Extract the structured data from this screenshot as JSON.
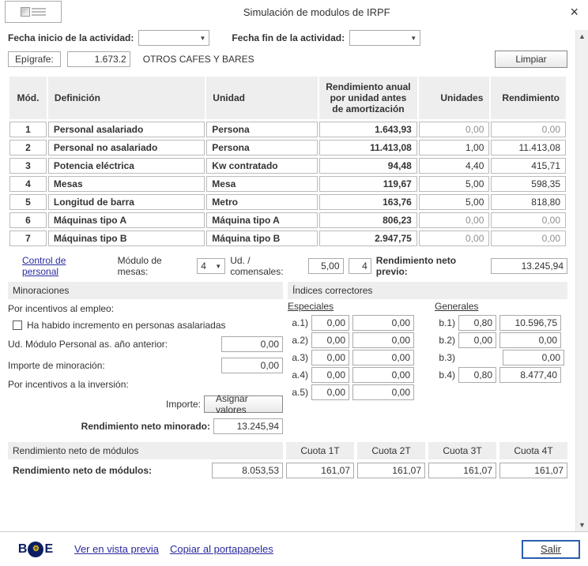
{
  "window": {
    "title": "Simulación de modulos de IRPF"
  },
  "dates": {
    "start_label": "Fecha inicio de la actividad:",
    "end_label": "Fecha fin de la actividad:"
  },
  "epigrafe": {
    "label": "Epígrafe:",
    "code": "1.673.2",
    "desc": "OTROS CAFES Y BARES"
  },
  "buttons": {
    "limpiar": "Limpiar",
    "asignar": "Asignar valores",
    "salir": "Salir"
  },
  "headers": {
    "mod": "Mód.",
    "def": "Definición",
    "uni": "Unidad",
    "rend": "Rendimiento anual por unidad antes de amortización",
    "unidades": "Unidades",
    "rendimiento": "Rendimiento"
  },
  "rows": [
    {
      "n": "1",
      "def": "Personal asalariado",
      "uni": "Persona",
      "r": "1.643,93",
      "u": "0,00",
      "t": "0,00",
      "dim": true
    },
    {
      "n": "2",
      "def": "Personal no asalariado",
      "uni": "Persona",
      "r": "11.413,08",
      "u": "1,00",
      "t": "11.413,08"
    },
    {
      "n": "3",
      "def": "Potencia eléctrica",
      "uni": "Kw contratado",
      "r": "94,48",
      "u": "4,40",
      "t": "415,71"
    },
    {
      "n": "4",
      "def": "Mesas",
      "uni": "Mesa",
      "r": "119,67",
      "u": "5,00",
      "t": "598,35"
    },
    {
      "n": "5",
      "def": "Longitud de barra",
      "uni": "Metro",
      "r": "163,76",
      "u": "5,00",
      "t": "818,80"
    },
    {
      "n": "6",
      "def": "Máquinas tipo A",
      "uni": "Máquina tipo A",
      "r": "806,23",
      "u": "0,00",
      "t": "0,00",
      "dim": true
    },
    {
      "n": "7",
      "def": "Máquinas tipo B",
      "uni": "Máquina tipo B",
      "r": "2.947,75",
      "u": "0,00",
      "t": "0,00",
      "dim": true
    }
  ],
  "mid": {
    "control": "Control de personal",
    "mesas_lbl": "Módulo de mesas:",
    "mesas_val": "4",
    "ud_lbl": "Ud. / comensales:",
    "ud_v1": "5,00",
    "ud_v2": "4",
    "rnp_lbl": "Rendimiento neto previo:",
    "rnp_val": "13.245,94"
  },
  "minor": {
    "title": "Minoraciones",
    "sec1": "Por incentivos al empleo:",
    "cb": "Ha habido incremento en personas asalariadas",
    "k1": "Ud. Módulo Personal as. año anterior:",
    "v1": "0,00",
    "k2": "Importe de minoración:",
    "v2": "0,00",
    "sec2": "Por incentivos a la inversión:",
    "imp_lbl": "Importe:",
    "rnm_lbl": "Rendimiento neto minorado:",
    "rnm_val": "13.245,94"
  },
  "idx": {
    "title": "Índices correctores",
    "esp": "Especiales",
    "gen": "Generales",
    "a": [
      {
        "tag": "a.1)",
        "c1": "0,00",
        "c2": "0,00"
      },
      {
        "tag": "a.2)",
        "c1": "0,00",
        "c2": "0,00"
      },
      {
        "tag": "a.3)",
        "c1": "0,00",
        "c2": "0,00"
      },
      {
        "tag": "a.4)",
        "c1": "0,00",
        "c2": "0,00"
      },
      {
        "tag": "a.5)",
        "c1": "0,00",
        "c2": "0,00"
      }
    ],
    "b": [
      {
        "tag": "b.1)",
        "c1": "0,80",
        "c2": "10.596,75"
      },
      {
        "tag": "b.2)",
        "c1": "0,00",
        "c2": "0,00"
      },
      {
        "tag": "b.3)",
        "c1": "",
        "c2": "0,00"
      },
      {
        "tag": "b.4)",
        "c1": "0,80",
        "c2": "8.477,40"
      }
    ]
  },
  "bottom": {
    "h_main": "Rendimiento neto de módulos",
    "q1": "Cuota 1T",
    "q2": "Cuota 2T",
    "q3": "Cuota 3T",
    "q4": "Cuota 4T",
    "lbl": "Rendimiento neto de módulos:",
    "v0": "8.053,53",
    "vq": "161,07"
  },
  "footer": {
    "prev": "Ver en vista previa",
    "copy": "Copiar al portapapeles"
  }
}
